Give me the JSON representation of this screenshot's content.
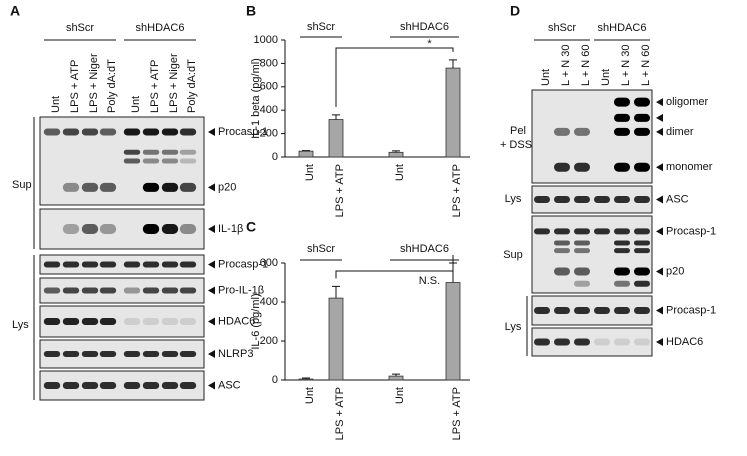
{
  "panel_a": {
    "letter": "A",
    "groups": [
      {
        "name": "shScr",
        "lanes": [
          "Unt",
          "LPS + ATP",
          "LPS + Niger",
          "Poly dA:dT"
        ]
      },
      {
        "name": "shHDAC6",
        "lanes": [
          "Unt",
          "LPS + ATP",
          "LPS + Niger",
          "Poly dA:dT"
        ]
      }
    ],
    "sections": [
      "Sup",
      "Lys"
    ],
    "blots": [
      {
        "labels": [
          "Procasp-1",
          "p20"
        ]
      },
      {
        "labels": [
          "IL-1β"
        ]
      },
      {
        "labels": [
          "Procasp-1"
        ]
      },
      {
        "labels": [
          "Pro-IL-1β"
        ]
      },
      {
        "labels": [
          "HDAC6"
        ]
      },
      {
        "labels": [
          "NLRP3"
        ]
      },
      {
        "labels": [
          "ASC"
        ]
      }
    ]
  },
  "chart_data": [
    {
      "type": "bar",
      "panel": "B",
      "y_label": "IL-1 beta (pg/ml)",
      "groups": [
        "shScr",
        "shHDAC6"
      ],
      "categories": [
        "Unt",
        "LPS + ATP",
        "Unt",
        "LPS + ATP"
      ],
      "values": [
        50,
        320,
        40,
        760
      ],
      "errors": [
        5,
        40,
        12,
        70
      ],
      "color": "#a6a6a6",
      "ylim": [
        0,
        1000
      ],
      "yticks": [
        0,
        200,
        400,
        600,
        800,
        1000
      ],
      "annotation": "*"
    },
    {
      "type": "bar",
      "panel": "C",
      "y_label": "IL-6 (pg/ml)",
      "groups": [
        "shScr",
        "shHDAC6"
      ],
      "categories": [
        "Unt",
        "LPS + ATP",
        "Unt",
        "LPS + ATP"
      ],
      "values": [
        5,
        420,
        20,
        500
      ],
      "errors": [
        5,
        60,
        10,
        100
      ],
      "color": "#a6a6a6",
      "ylim": [
        0,
        600
      ],
      "yticks": [
        0,
        200,
        400,
        600
      ],
      "annotation": "N.S."
    }
  ],
  "panel_d": {
    "letter": "D",
    "groups": [
      {
        "name": "shScr",
        "lanes": [
          "Unt",
          "L + N 30",
          "L + N 60"
        ]
      },
      {
        "name": "shHDAC6",
        "lanes": [
          "Unt",
          "L + N 30",
          "L + N 60"
        ]
      }
    ],
    "sections": [
      "Pel",
      "+ DSS",
      "Lys",
      "Sup",
      "Lys"
    ],
    "blots": [
      {
        "labels": [
          "oligomer",
          "dimer",
          "monomer"
        ]
      },
      {
        "labels": [
          "ASC"
        ]
      },
      {
        "labels": [
          "Procasp-1",
          "p20"
        ]
      },
      {
        "labels": [
          "Procasp-1"
        ]
      },
      {
        "labels": [
          "HDAC6"
        ]
      }
    ]
  }
}
